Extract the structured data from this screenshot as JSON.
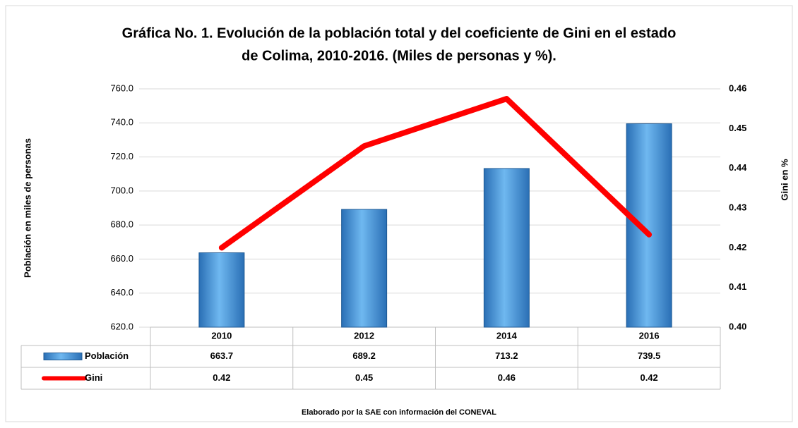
{
  "chart_data": {
    "type": "bar",
    "title": "Gráfica No. 1. Evolución de la población total y del coeficiente de Gini en el estado",
    "title_line2": "de Colima, 2010-2016. (Miles de personas y %).",
    "y_label": "Población en miles de personas",
    "y2_label": "Gini en %",
    "footnote": "Elaborado por la SAE con información del CONEVAL",
    "categories": [
      "2010",
      "2012",
      "2014",
      "2016"
    ],
    "series": [
      {
        "name": "Población",
        "type": "bar",
        "color": "#4a9ee0",
        "values": [
          663.7,
          689.2,
          713.2,
          739.5
        ]
      },
      {
        "name": "Gini",
        "type": "line",
        "axis": "y2",
        "color": "#ff0000",
        "values": [
          0.42,
          0.4456,
          0.4575,
          0.4233
        ],
        "value_labels": [
          "0.42",
          "0.45",
          "0.46",
          "0.42"
        ]
      }
    ],
    "ylim": [
      620,
      760
    ],
    "yticks": [
      {
        "value": 620,
        "label": "620.0"
      },
      {
        "value": 640,
        "label": "640.0"
      },
      {
        "value": 660,
        "label": "660.0"
      },
      {
        "value": 680,
        "label": "680.0"
      },
      {
        "value": 700,
        "label": "700.0"
      },
      {
        "value": 720,
        "label": "720.0"
      },
      {
        "value": 740,
        "label": "740.0"
      },
      {
        "value": 760,
        "label": "760.0"
      }
    ],
    "y2lim": [
      0.4,
      0.46
    ],
    "y2ticks": [
      {
        "value": 0.4,
        "label": "0.40"
      },
      0.41,
      0.42,
      0.43,
      0.44,
      0.45,
      0.46
    ],
    "grid": true,
    "data_table": true
  }
}
